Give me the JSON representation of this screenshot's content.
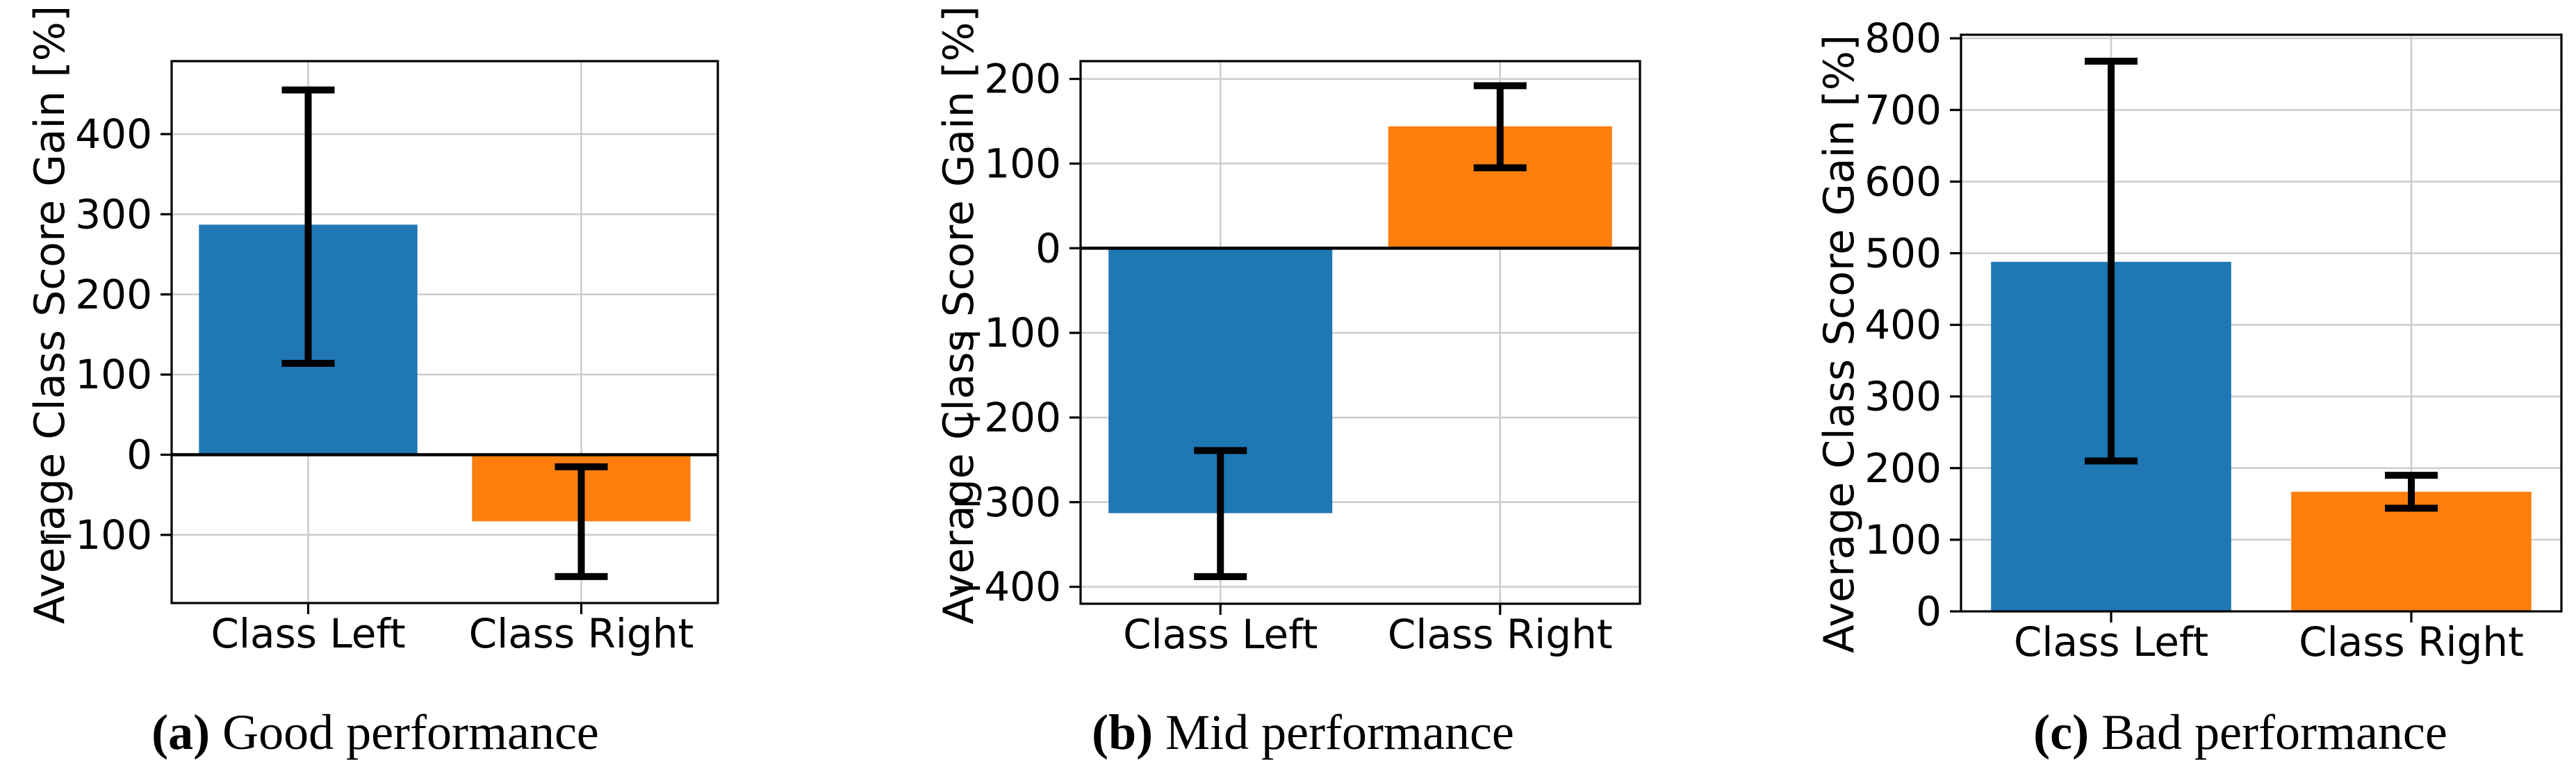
{
  "chart_data": [
    {
      "type": "bar",
      "caption_label": "(a)",
      "caption_text": "Good performance",
      "ylabel": "Average Class Score Gain [%]",
      "categories": [
        "Class Left",
        "Class Right"
      ],
      "values": [
        287,
        -83
      ],
      "error_bars": [
        {
          "low": 114,
          "high": 455
        },
        {
          "low": -152,
          "high": -15
        }
      ],
      "bar_colors": [
        "#1f77b4",
        "#ff7f0e"
      ],
      "yticks": [
        -100,
        0,
        100,
        200,
        300,
        400
      ],
      "ylim": [
        -185,
        491
      ],
      "grid": true,
      "grid_color": "#cccccc",
      "zero_line": true,
      "legend": null
    },
    {
      "type": "bar",
      "caption_label": "(b)",
      "caption_text": "Mid performance",
      "ylabel": "Average Class Score Gain [%]",
      "categories": [
        "Class Left",
        "Class Right"
      ],
      "values": [
        -313,
        144
      ],
      "error_bars": [
        {
          "low": -388,
          "high": -239
        },
        {
          "low": 95,
          "high": 192
        }
      ],
      "bar_colors": [
        "#1f77b4",
        "#ff7f0e"
      ],
      "yticks": [
        -400,
        -300,
        -200,
        -100,
        0,
        100,
        200
      ],
      "ylim": [
        -420,
        221
      ],
      "grid": true,
      "grid_color": "#cccccc",
      "zero_line": true,
      "legend": null
    },
    {
      "type": "bar",
      "caption_label": "(c)",
      "caption_text": "Bad performance",
      "ylabel": "Average Class Score Gain [%]",
      "categories": [
        "Class Left",
        "Class Right"
      ],
      "values": [
        488,
        167
      ],
      "error_bars": [
        {
          "low": 210,
          "high": 768
        },
        {
          "low": 144,
          "high": 190
        }
      ],
      "bar_colors": [
        "#1f77b4",
        "#ff7f0e"
      ],
      "yticks": [
        0,
        100,
        200,
        300,
        400,
        500,
        600,
        700,
        800
      ],
      "ylim": [
        0,
        805
      ],
      "grid": true,
      "grid_color": "#cccccc",
      "zero_line": false,
      "legend": null
    }
  ]
}
